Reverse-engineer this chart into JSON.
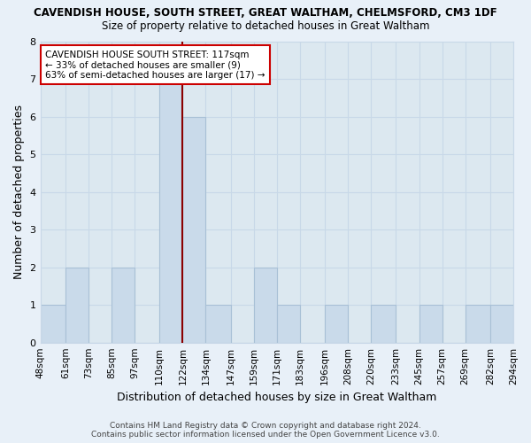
{
  "title": "CAVENDISH HOUSE, SOUTH STREET, GREAT WALTHAM, CHELMSFORD, CM3 1DF",
  "subtitle": "Size of property relative to detached houses in Great Waltham",
  "xlabel": "Distribution of detached houses by size in Great Waltham",
  "ylabel": "Number of detached properties",
  "bin_edges": [
    48,
    61,
    73,
    85,
    97,
    110,
    122,
    134,
    147,
    159,
    171,
    183,
    196,
    208,
    220,
    233,
    245,
    257,
    269,
    282,
    294
  ],
  "bin_labels": [
    "48sqm",
    "61sqm",
    "73sqm",
    "85sqm",
    "97sqm",
    "110sqm",
    "122sqm",
    "134sqm",
    "147sqm",
    "159sqm",
    "171sqm",
    "183sqm",
    "196sqm",
    "208sqm",
    "220sqm",
    "233sqm",
    "245sqm",
    "257sqm",
    "269sqm",
    "282sqm",
    "294sqm"
  ],
  "counts": [
    1,
    2,
    0,
    2,
    0,
    7,
    6,
    1,
    0,
    2,
    1,
    0,
    1,
    0,
    1,
    0,
    1,
    0,
    1,
    1
  ],
  "bar_color": "#c9daea",
  "bar_edge_color": "#a8c0d6",
  "reference_line_x": 122,
  "reference_line_color": "#8b0000",
  "ylim": [
    0,
    8
  ],
  "yticks": [
    0,
    1,
    2,
    3,
    4,
    5,
    6,
    7,
    8
  ],
  "annotation_box_text_line1": "CAVENDISH HOUSE SOUTH STREET: 117sqm",
  "annotation_box_text_line2": "← 33% of detached houses are smaller (9)",
  "annotation_box_text_line3": "63% of semi-detached houses are larger (17) →",
  "grid_color": "#c8d8e8",
  "plot_bg_color": "#dce8f0",
  "fig_bg_color": "#e8f0f8",
  "footer_line1": "Contains HM Land Registry data © Crown copyright and database right 2024.",
  "footer_line2": "Contains public sector information licensed under the Open Government Licence v3.0."
}
